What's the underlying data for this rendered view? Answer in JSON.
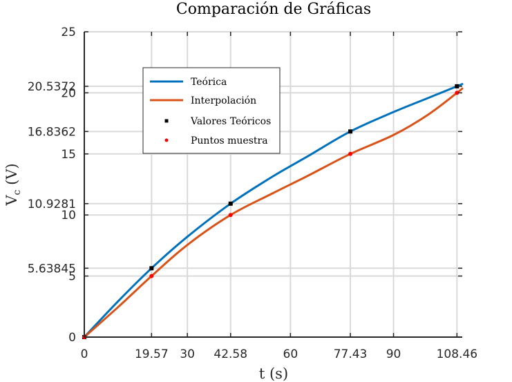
{
  "chart_data": {
    "type": "line",
    "title": "Comparación de Gráficas",
    "xlabel": "t (s)",
    "ylabel_main": "V",
    "ylabel_sub": "c",
    "ylabel_unit": " (V)",
    "xlim": [
      0,
      110
    ],
    "ylim": [
      0,
      25
    ],
    "xticks": [
      0,
      19.57,
      30,
      42.58,
      60,
      77.43,
      90,
      108.46
    ],
    "xtick_labels": [
      "0",
      "19.57",
      "30",
      "42.58",
      "60",
      "77.43",
      "90",
      "108.46"
    ],
    "yticks": [
      0,
      5,
      5.63845,
      10,
      10.9281,
      15,
      16.8362,
      20,
      20.5372,
      25
    ],
    "ytick_labels": [
      "0",
      "5",
      "5.63845",
      "10",
      "10.9281",
      "15",
      "16.8362",
      "20",
      "20.5372",
      "25"
    ],
    "grid": true,
    "legend_position": "upper-left",
    "series": [
      {
        "name": "Teórica",
        "style": "line",
        "color": "#0072BD",
        "x": [
          0,
          10,
          19.57,
          30,
          42.58,
          55,
          65,
          77.43,
          90,
          100,
          108.46,
          110
        ],
        "y": [
          0,
          2.98,
          5.63845,
          8.22,
          10.9281,
          13.18,
          14.8,
          16.8362,
          18.43,
          19.57,
          20.5372,
          20.72
        ]
      },
      {
        "name": "Interpolación",
        "style": "line",
        "color": "#D95319",
        "x": [
          0,
          10,
          19.57,
          30,
          42.58,
          55,
          65,
          77.43,
          90,
          100,
          108.46,
          110
        ],
        "y": [
          0,
          2.5,
          5.0,
          7.55,
          10.0,
          11.8,
          13.2,
          15.0,
          16.55,
          18.2,
          20.0,
          20.35
        ]
      },
      {
        "name": "Valores Teóricos",
        "style": "markers",
        "color": "#000000",
        "x": [
          0,
          19.57,
          42.58,
          77.43,
          108.46
        ],
        "y": [
          0,
          5.63845,
          10.9281,
          16.8362,
          20.5372
        ]
      },
      {
        "name": "Puntos muestra",
        "style": "markers",
        "color": "#FF0000",
        "x": [
          0,
          19.57,
          42.58,
          77.43,
          108.46
        ],
        "y": [
          0,
          5,
          10,
          15,
          20
        ]
      }
    ]
  }
}
